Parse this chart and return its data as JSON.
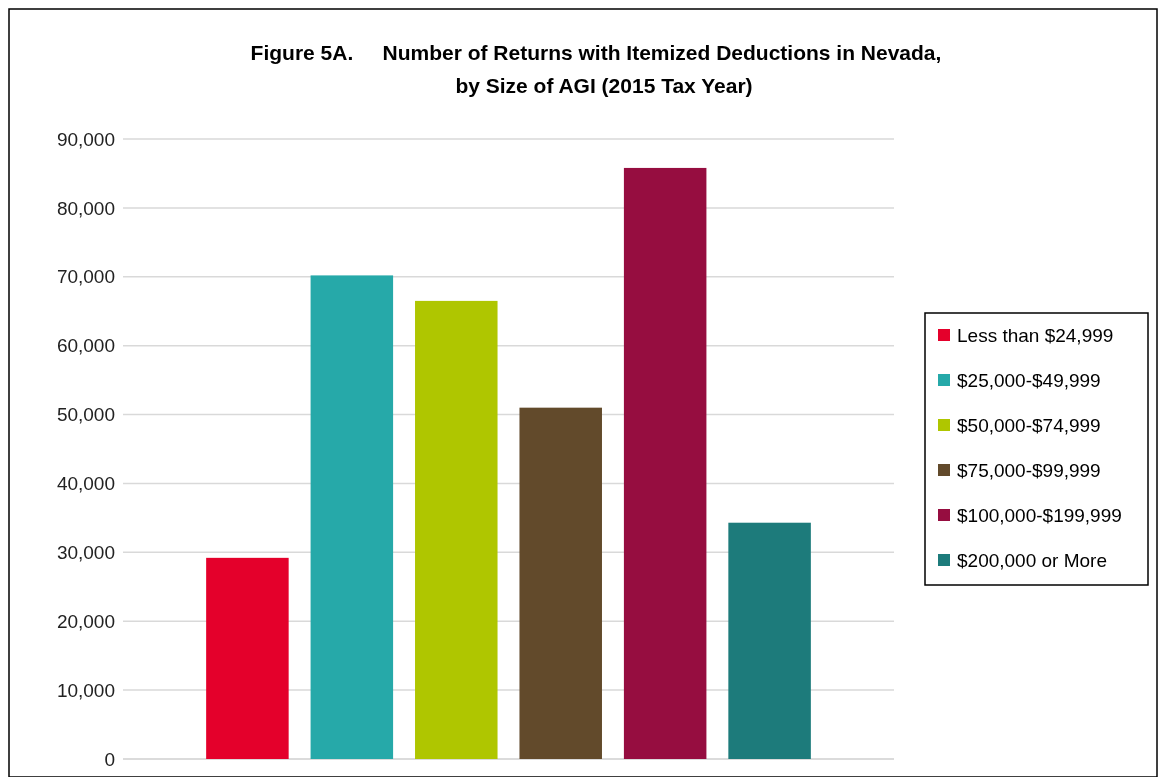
{
  "chart_data": {
    "type": "bar",
    "title": "Figure 5A.     Number of Returns with Itemized Deductions in Nevada,\nby Size of AGI (2015 Tax Year)",
    "categories": [
      null
    ],
    "series": [
      {
        "name": "Less than $24,999",
        "color": "#e4002b",
        "values": [
          29200
        ]
      },
      {
        "name": "$25,000-$49,999",
        "color": "#26a9a9",
        "values": [
          70200
        ]
      },
      {
        "name": "$50,000-$74,999",
        "color": "#afc600",
        "values": [
          66500
        ]
      },
      {
        "name": "$75,000-$99,999",
        "color": "#624a2b",
        "values": [
          51000
        ]
      },
      {
        "name": "$100,000-$199,999",
        "color": "#960d40",
        "values": [
          85800
        ]
      },
      {
        "name": "$200,000 or More",
        "color": "#1d7b7b",
        "values": [
          34300
        ]
      }
    ],
    "ylim": [
      0,
      90000
    ],
    "yticks": [
      {
        "value": 0,
        "label": "0"
      },
      {
        "value": 10000,
        "label": "10,000"
      },
      {
        "value": 20000,
        "label": "20,000"
      },
      {
        "value": 30000,
        "label": "30,000"
      },
      {
        "value": 40000,
        "label": "40,000"
      },
      {
        "value": 50000,
        "label": "50,000"
      },
      {
        "value": 60000,
        "label": "60,000"
      },
      {
        "value": 70000,
        "label": "70,000"
      },
      {
        "value": 80000,
        "label": "80,000"
      },
      {
        "value": 90000,
        "label": "90,000"
      }
    ],
    "grid": "y",
    "legend": "right",
    "tick_labels": "y"
  }
}
